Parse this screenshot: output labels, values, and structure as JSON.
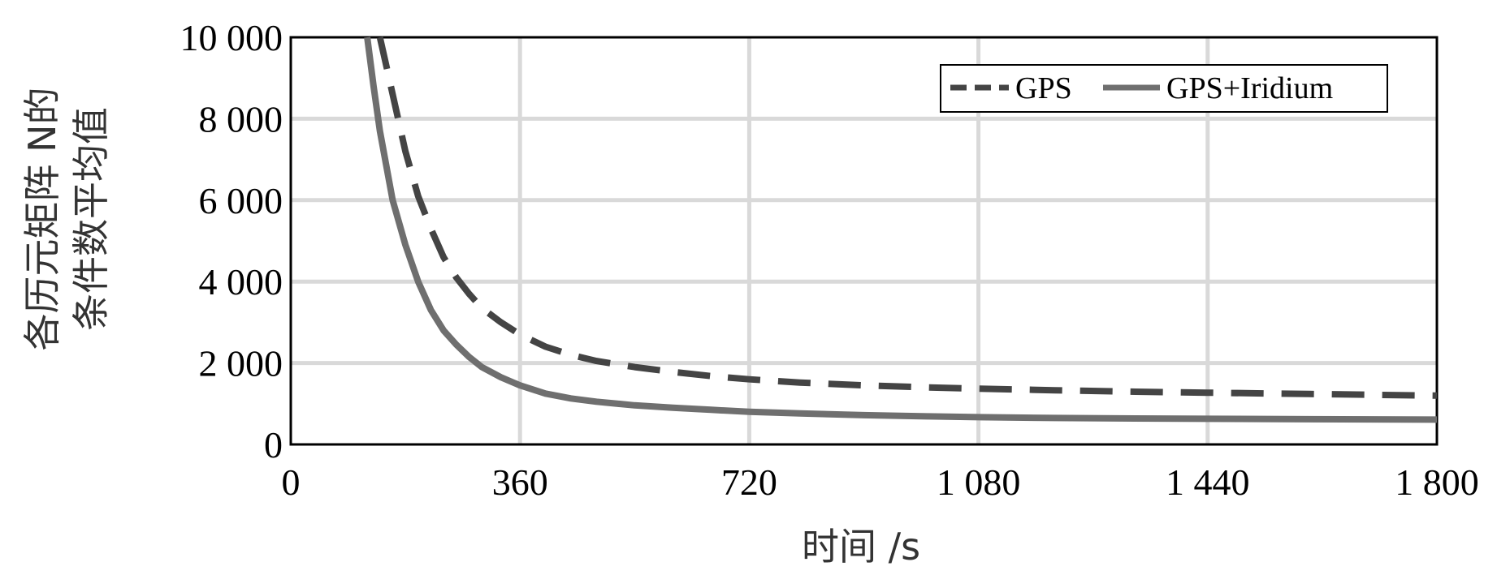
{
  "chart_data": {
    "type": "line",
    "xlabel": "时间 /s",
    "ylabel_lines": [
      "各历元矩阵 N的",
      "条件数平均值"
    ],
    "xlim": [
      0,
      1800
    ],
    "ylim": [
      0,
      10000
    ],
    "x_ticks": [
      0,
      360,
      720,
      1080,
      1440,
      1800
    ],
    "x_tick_labels": [
      "0",
      "360",
      "720",
      "1 080",
      "1 440",
      "1 800"
    ],
    "y_ticks": [
      0,
      2000,
      4000,
      6000,
      8000,
      10000
    ],
    "y_tick_labels": [
      "0",
      "2 000",
      "4 000",
      "6 000",
      "8 000",
      "10 000"
    ],
    "grid": true,
    "legend_position": "top-right",
    "series": [
      {
        "name": "GPS",
        "style": "dashed",
        "color": "#444444",
        "x": [
          140,
          150,
          160,
          180,
          200,
          220,
          240,
          260,
          280,
          300,
          330,
          360,
          400,
          440,
          480,
          540,
          600,
          660,
          720,
          800,
          900,
          1000,
          1080,
          1200,
          1300,
          1440,
          1600,
          1800
        ],
        "y": [
          10000,
          9300,
          8600,
          7200,
          6100,
          5300,
          4600,
          4100,
          3700,
          3350,
          3000,
          2700,
          2400,
          2200,
          2050,
          1900,
          1780,
          1680,
          1600,
          1520,
          1450,
          1400,
          1370,
          1330,
          1300,
          1270,
          1240,
          1200
        ]
      },
      {
        "name": "GPS+Iridium",
        "style": "solid",
        "color": "#6f6f6f",
        "x": [
          120,
          130,
          140,
          160,
          180,
          200,
          220,
          240,
          260,
          280,
          300,
          330,
          360,
          400,
          440,
          480,
          540,
          600,
          660,
          720,
          800,
          900,
          1000,
          1080,
          1200,
          1300,
          1440,
          1600,
          1800
        ],
        "y": [
          10000,
          8800,
          7700,
          6000,
          4900,
          4000,
          3300,
          2800,
          2450,
          2150,
          1900,
          1650,
          1450,
          1250,
          1130,
          1050,
          960,
          900,
          850,
          800,
          760,
          720,
          690,
          670,
          650,
          640,
          630,
          620,
          610
        ]
      }
    ]
  }
}
